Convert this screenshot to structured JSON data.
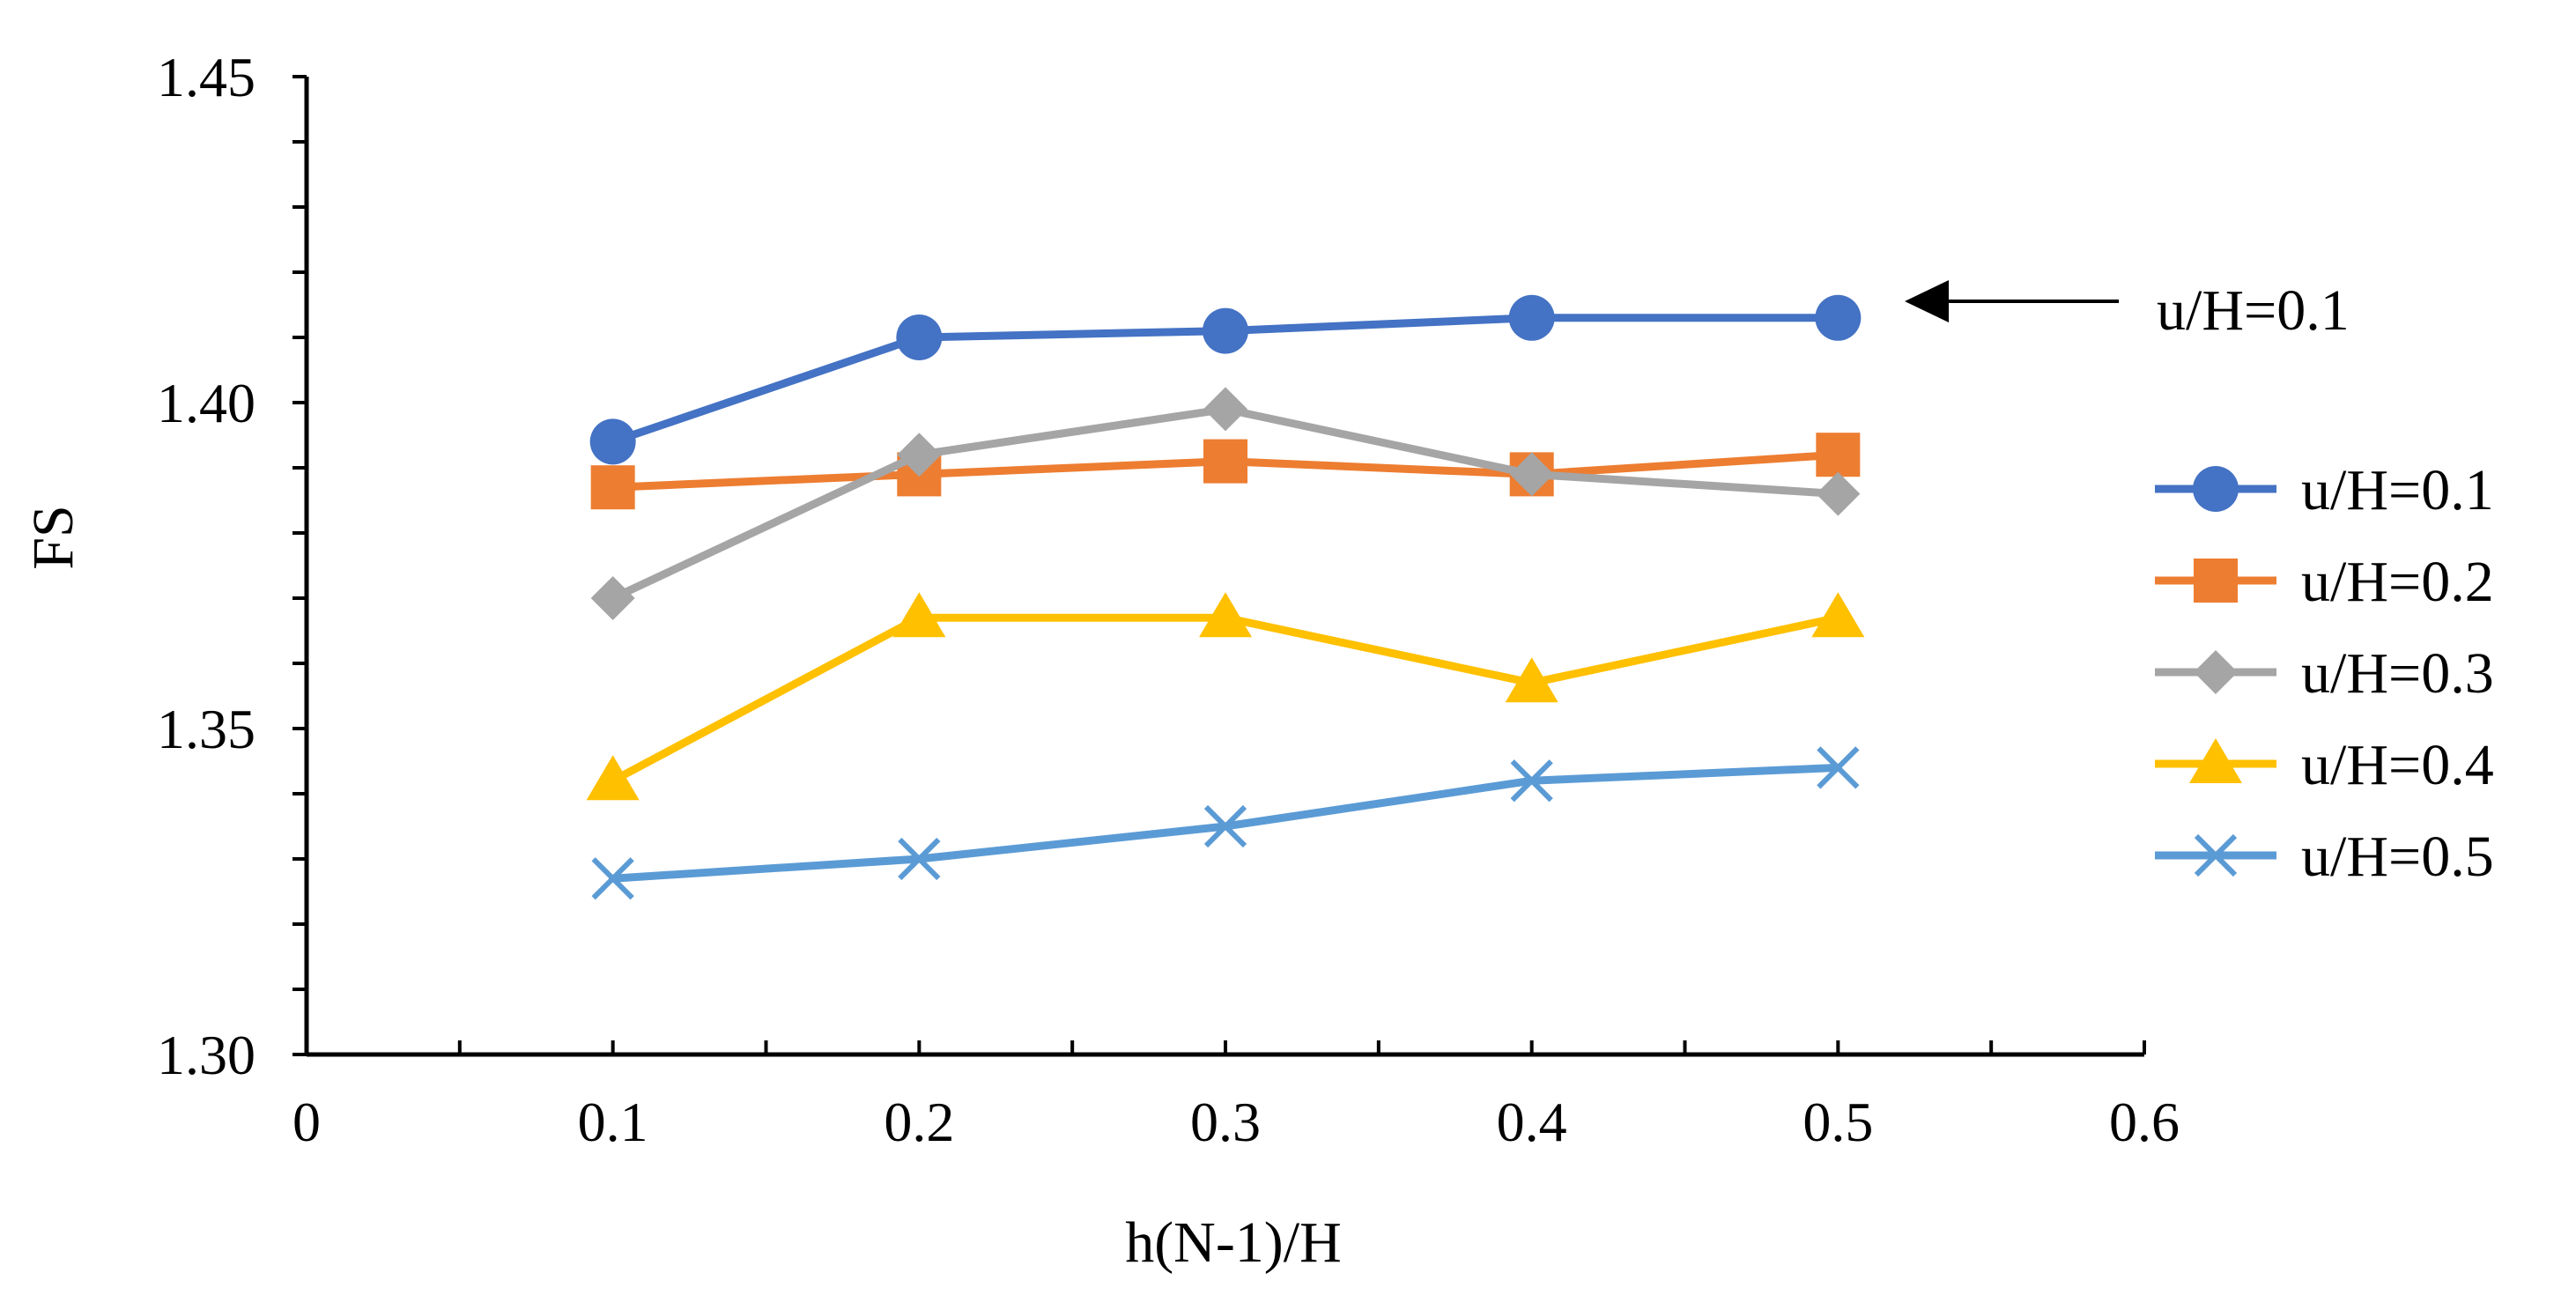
{
  "chart_data": {
    "type": "line",
    "title": "",
    "xlabel": "h(N-1)/H",
    "ylabel": "FS",
    "xlim": [
      0,
      0.6
    ],
    "ylim": [
      1.3,
      1.45
    ],
    "x_ticks": [
      0,
      0.1,
      0.2,
      0.3,
      0.4,
      0.5,
      0.6
    ],
    "x_tick_labels": [
      "0",
      "0.1",
      "0.2",
      "0.3",
      "0.4",
      "0.5",
      "0.6"
    ],
    "x_minor_step": 0.05,
    "y_ticks": [
      1.3,
      1.35,
      1.4,
      1.45
    ],
    "y_tick_labels": [
      "1.30",
      "1.35",
      "1.40",
      "1.45"
    ],
    "y_minor_step": 0.01,
    "grid": false,
    "legend_position": "right",
    "x": [
      0.1,
      0.2,
      0.3,
      0.4,
      0.5
    ],
    "series": [
      {
        "name": "u/H=0.1",
        "color": "#4472C4",
        "marker": "circle",
        "values": [
          1.394,
          1.41,
          1.411,
          1.413,
          1.413
        ]
      },
      {
        "name": "u/H=0.2",
        "color": "#ED7D31",
        "marker": "square",
        "values": [
          1.387,
          1.389,
          1.391,
          1.389,
          1.392
        ]
      },
      {
        "name": "u/H=0.3",
        "color": "#A5A5A5",
        "marker": "diamond",
        "values": [
          1.37,
          1.392,
          1.399,
          1.389,
          1.386
        ]
      },
      {
        "name": "u/H=0.4",
        "color": "#FFC000",
        "marker": "triangle",
        "values": [
          1.342,
          1.367,
          1.367,
          1.357,
          1.367
        ]
      },
      {
        "name": "u/H=0.5",
        "color": "#5B9BD5",
        "marker": "cross",
        "values": [
          1.327,
          1.33,
          1.335,
          1.342,
          1.344
        ]
      }
    ],
    "annotation": {
      "text": "u/H=0.1",
      "points_to_y": 1.415,
      "arrow": "left"
    }
  }
}
